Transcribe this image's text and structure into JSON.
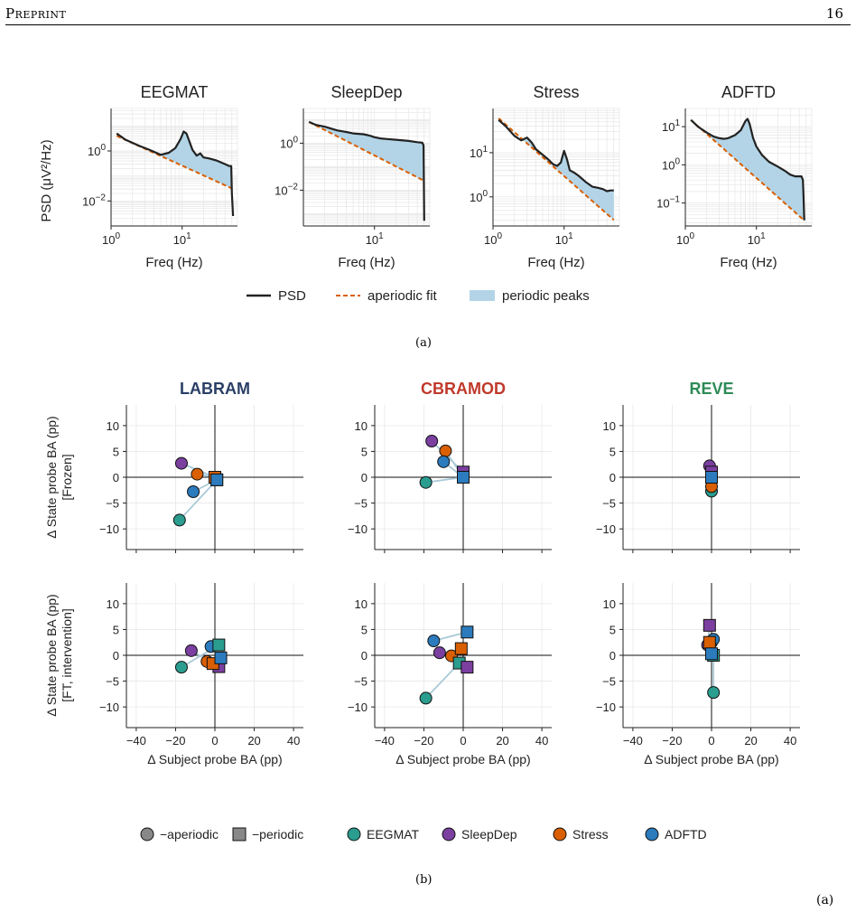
{
  "header": {
    "running_title": "Preprint",
    "page_number": "16"
  },
  "captions": {
    "a": "(a)",
    "b": "(b)",
    "trailing": "(a)"
  },
  "colors": {
    "psd": "#222222",
    "aperiodic": "#d95f02",
    "peaks": "#b3d4e6",
    "EEGMAT": "#2a9d8f",
    "SleepDep": "#7b3fa0",
    "Stress": "#d95f02",
    "ADFTD": "#2b7bbd",
    "marker_gray": "#888888",
    "link": "#a9c9d8"
  },
  "psd_panels": {
    "ylabel": "PSD (μV²/Hz)",
    "xlabel": "Freq (Hz)",
    "legend": {
      "psd": "PSD",
      "aperiodic": "aperiodic fit",
      "peaks": "periodic peaks"
    }
  },
  "scatter_panels": {
    "row_labels": [
      "Δ State probe BA (pp)\n[Frozen]",
      "Δ State probe BA (pp)\n[FT, intervention]"
    ],
    "xlabel": "Δ Subject probe BA (pp)",
    "model_colors": {
      "LABRAM": "#2a3f66",
      "CBRAMOD": "#c0392b",
      "REVE": "#2e8b57"
    },
    "legend": [
      {
        "label": "−aperiodic",
        "marker": "circle",
        "color": "#888888"
      },
      {
        "label": "−periodic",
        "marker": "square",
        "color": "#888888"
      },
      {
        "label": "EEGMAT",
        "marker": "circle",
        "color": "#2a9d8f"
      },
      {
        "label": "SleepDep",
        "marker": "circle",
        "color": "#7b3fa0"
      },
      {
        "label": "Stress",
        "marker": "circle",
        "color": "#d95f02"
      },
      {
        "label": "ADFTD",
        "marker": "circle",
        "color": "#2b7bbd"
      }
    ]
  },
  "chart_data": [
    {
      "type": "line",
      "title": "EEGMAT",
      "xlabel": "Freq (Hz)",
      "ylabel": "PSD (μV²/Hz)",
      "log_x": true,
      "log_y": true,
      "xticks": [
        "10^0",
        "10^1"
      ],
      "yticks": [
        "10^0",
        "10^-2"
      ],
      "xlim": [
        1,
        60
      ],
      "ylim": [
        0.001,
        50
      ],
      "series": [
        {
          "name": "PSD",
          "x": [
            1.2,
            1.6,
            2.5,
            3.5,
            5,
            6.5,
            8,
            9.5,
            10.5,
            11.5,
            12.5,
            14,
            16,
            18,
            20,
            24,
            30,
            40,
            46,
            49,
            50,
            52
          ],
          "y": [
            5,
            2.8,
            1.6,
            1.1,
            0.7,
            0.85,
            1.3,
            3,
            6,
            5,
            2.6,
            1.1,
            0.65,
            0.8,
            0.55,
            0.5,
            0.42,
            0.3,
            0.25,
            0.25,
            0.02,
            0.0025
          ]
        },
        {
          "name": "aperiodic fit",
          "x": [
            1.2,
            50
          ],
          "y": [
            4,
            0.032
          ]
        }
      ]
    },
    {
      "type": "line",
      "title": "SleepDep",
      "xlabel": "Freq (Hz)",
      "log_x": true,
      "log_y": true,
      "xticks": [
        "10^1"
      ],
      "yticks": [
        "10^0",
        "10^-2"
      ],
      "xlim": [
        1,
        60
      ],
      "ylim": [
        0.0003,
        30
      ],
      "series": [
        {
          "name": "PSD",
          "x": [
            1.2,
            1.5,
            2,
            3,
            4,
            5,
            6,
            7,
            8,
            9,
            10,
            12,
            15,
            20,
            30,
            40,
            47,
            49,
            50
          ],
          "y": [
            8,
            6,
            5,
            3.5,
            3,
            2.6,
            2.5,
            2.4,
            2.2,
            2,
            1.8,
            1.6,
            1.5,
            1.4,
            1.25,
            1.1,
            1.05,
            0.8,
            0.0005
          ]
        },
        {
          "name": "aperiodic fit",
          "x": [
            1.2,
            50
          ],
          "y": [
            8,
            0.025
          ]
        }
      ]
    },
    {
      "type": "line",
      "title": "Stress",
      "xlabel": "Freq (Hz)",
      "log_x": true,
      "log_y": true,
      "xticks": [
        "10^0",
        "10^1"
      ],
      "yticks": [
        "10^1",
        "10^0"
      ],
      "xlim": [
        1,
        60
      ],
      "ylim": [
        0.22,
        100
      ],
      "series": [
        {
          "name": "PSD",
          "x": [
            1.2,
            1.5,
            2,
            2.5,
            3,
            3.5,
            4,
            5,
            6,
            7,
            8,
            9,
            10,
            11,
            12,
            14,
            16,
            20,
            25,
            30,
            35,
            40,
            45,
            50
          ],
          "y": [
            55,
            40,
            24,
            19,
            22,
            17,
            12,
            9,
            7,
            5.5,
            5,
            6,
            11,
            7,
            4,
            3.5,
            3,
            2.2,
            1.7,
            1.6,
            1.5,
            1.35,
            1.4,
            1.4
          ]
        },
        {
          "name": "aperiodic fit",
          "x": [
            1.2,
            50
          ],
          "y": [
            60,
            0.3
          ]
        }
      ]
    },
    {
      "type": "line",
      "title": "ADFTD",
      "xlabel": "Freq (Hz)",
      "log_x": true,
      "log_y": true,
      "xticks": [
        "10^0",
        "10^1"
      ],
      "yticks": [
        "10^1",
        "10^0",
        "10^-1"
      ],
      "xlim": [
        1,
        60
      ],
      "ylim": [
        0.025,
        30
      ],
      "series": [
        {
          "name": "PSD",
          "x": [
            1.2,
            1.5,
            2,
            2.5,
            3,
            3.5,
            4,
            5,
            6,
            7,
            7.5,
            8,
            9,
            10,
            12,
            15,
            20,
            25,
            30,
            35,
            40,
            43,
            45,
            46,
            47
          ],
          "y": [
            15,
            10,
            7,
            5.5,
            5,
            4.8,
            5,
            6,
            8,
            14,
            16,
            12,
            5,
            3,
            1.8,
            1.2,
            0.9,
            0.7,
            0.55,
            0.5,
            0.5,
            0.5,
            0.4,
            0.15,
            0.035
          ]
        },
        {
          "name": "aperiodic fit",
          "x": [
            1.2,
            47
          ],
          "y": [
            15,
            0.035
          ]
        }
      ]
    },
    {
      "type": "scatter",
      "title": "LABRAM",
      "row": "Frozen",
      "xlim": [
        -45,
        45
      ],
      "ylim": [
        -14,
        14
      ],
      "xticks": [
        -40,
        -20,
        0,
        20,
        40
      ],
      "yticks": [
        10,
        5,
        0,
        -5,
        -10
      ],
      "points": [
        {
          "dataset": "EEGMAT",
          "aperiodic": [
            -18,
            -8.3
          ],
          "periodic": [
            1,
            -0.5
          ]
        },
        {
          "dataset": "SleepDep",
          "aperiodic": [
            -17,
            2.7
          ],
          "periodic": [
            0,
            0
          ]
        },
        {
          "dataset": "Stress",
          "aperiodic": [
            -9,
            0.6
          ],
          "periodic": [
            0,
            0
          ]
        },
        {
          "dataset": "ADFTD",
          "aperiodic": [
            -11,
            -2.8
          ],
          "periodic": [
            1,
            -0.5
          ]
        }
      ]
    },
    {
      "type": "scatter",
      "title": "CBRAMOD",
      "row": "Frozen",
      "xlim": [
        -45,
        45
      ],
      "ylim": [
        -14,
        14
      ],
      "xticks": [
        -40,
        -20,
        0,
        20,
        40
      ],
      "yticks": [
        10,
        5,
        0,
        -5,
        -10
      ],
      "points": [
        {
          "dataset": "EEGMAT",
          "aperiodic": [
            -19,
            -1
          ],
          "periodic": [
            0,
            0
          ]
        },
        {
          "dataset": "SleepDep",
          "aperiodic": [
            -16,
            7
          ],
          "periodic": [
            0,
            1
          ]
        },
        {
          "dataset": "Stress",
          "aperiodic": [
            -9,
            5.1
          ],
          "periodic": [
            0,
            0
          ]
        },
        {
          "dataset": "ADFTD",
          "aperiodic": [
            -10,
            3
          ],
          "periodic": [
            0,
            0
          ]
        }
      ]
    },
    {
      "type": "scatter",
      "title": "REVE",
      "row": "Frozen",
      "xlim": [
        -45,
        45
      ],
      "ylim": [
        -14,
        14
      ],
      "xticks": [
        -40,
        -20,
        0,
        20,
        40
      ],
      "yticks": [
        10,
        5,
        0,
        -5,
        -10
      ],
      "points": [
        {
          "dataset": "EEGMAT",
          "aperiodic": [
            0,
            -2.7
          ],
          "periodic": [
            0,
            0
          ]
        },
        {
          "dataset": "SleepDep",
          "aperiodic": [
            -1,
            2.2
          ],
          "periodic": [
            0,
            1
          ]
        },
        {
          "dataset": "Stress",
          "aperiodic": [
            0,
            -1.8
          ],
          "periodic": [
            0,
            0
          ]
        },
        {
          "dataset": "ADFTD",
          "aperiodic": [
            0,
            0
          ],
          "periodic": [
            0,
            0
          ]
        }
      ]
    },
    {
      "type": "scatter",
      "title": "LABRAM",
      "row": "FT, intervention",
      "xlim": [
        -45,
        45
      ],
      "ylim": [
        -14,
        14
      ],
      "xticks": [
        -40,
        -20,
        0,
        20,
        40
      ],
      "yticks": [
        10,
        5,
        0,
        -5,
        -10
      ],
      "points": [
        {
          "dataset": "EEGMAT",
          "aperiodic": [
            -17,
            -2.3
          ],
          "periodic": [
            2,
            2
          ]
        },
        {
          "dataset": "SleepDep",
          "aperiodic": [
            -12,
            0.9
          ],
          "periodic": [
            2,
            -2.2
          ]
        },
        {
          "dataset": "Stress",
          "aperiodic": [
            -4,
            -1.2
          ],
          "periodic": [
            -1,
            -1.6
          ]
        },
        {
          "dataset": "ADFTD",
          "aperiodic": [
            -2,
            1.7
          ],
          "periodic": [
            3,
            -0.5
          ]
        }
      ]
    },
    {
      "type": "scatter",
      "title": "CBRAMOD",
      "row": "FT, intervention",
      "xlim": [
        -45,
        45
      ],
      "ylim": [
        -14,
        14
      ],
      "xticks": [
        -40,
        -20,
        0,
        20,
        40
      ],
      "yticks": [
        10,
        5,
        0,
        -5,
        -10
      ],
      "points": [
        {
          "dataset": "EEGMAT",
          "aperiodic": [
            -19,
            -8.3
          ],
          "periodic": [
            -2,
            -1.5
          ]
        },
        {
          "dataset": "SleepDep",
          "aperiodic": [
            -12,
            0.5
          ],
          "periodic": [
            2,
            -2.3
          ]
        },
        {
          "dataset": "Stress",
          "aperiodic": [
            -6,
            -0.1
          ],
          "periodic": [
            -1,
            1.3
          ]
        },
        {
          "dataset": "ADFTD",
          "aperiodic": [
            -15,
            2.8
          ],
          "periodic": [
            2,
            4.5
          ]
        }
      ]
    },
    {
      "type": "scatter",
      "title": "REVE",
      "row": "FT, intervention",
      "xlim": [
        -45,
        45
      ],
      "ylim": [
        -14,
        14
      ],
      "xticks": [
        -40,
        -20,
        0,
        20,
        40
      ],
      "yticks": [
        10,
        5,
        0,
        -5,
        -10
      ],
      "points": [
        {
          "dataset": "EEGMAT",
          "aperiodic": [
            1,
            -7.2
          ],
          "periodic": [
            1,
            0
          ]
        },
        {
          "dataset": "SleepDep",
          "aperiodic": [
            -2,
            2
          ],
          "periodic": [
            -1,
            5.8
          ]
        },
        {
          "dataset": "Stress",
          "aperiodic": [
            0,
            2.5
          ],
          "periodic": [
            -1,
            2.5
          ]
        },
        {
          "dataset": "ADFTD",
          "aperiodic": [
            1,
            3.1
          ],
          "periodic": [
            0,
            0.3
          ]
        }
      ]
    }
  ]
}
